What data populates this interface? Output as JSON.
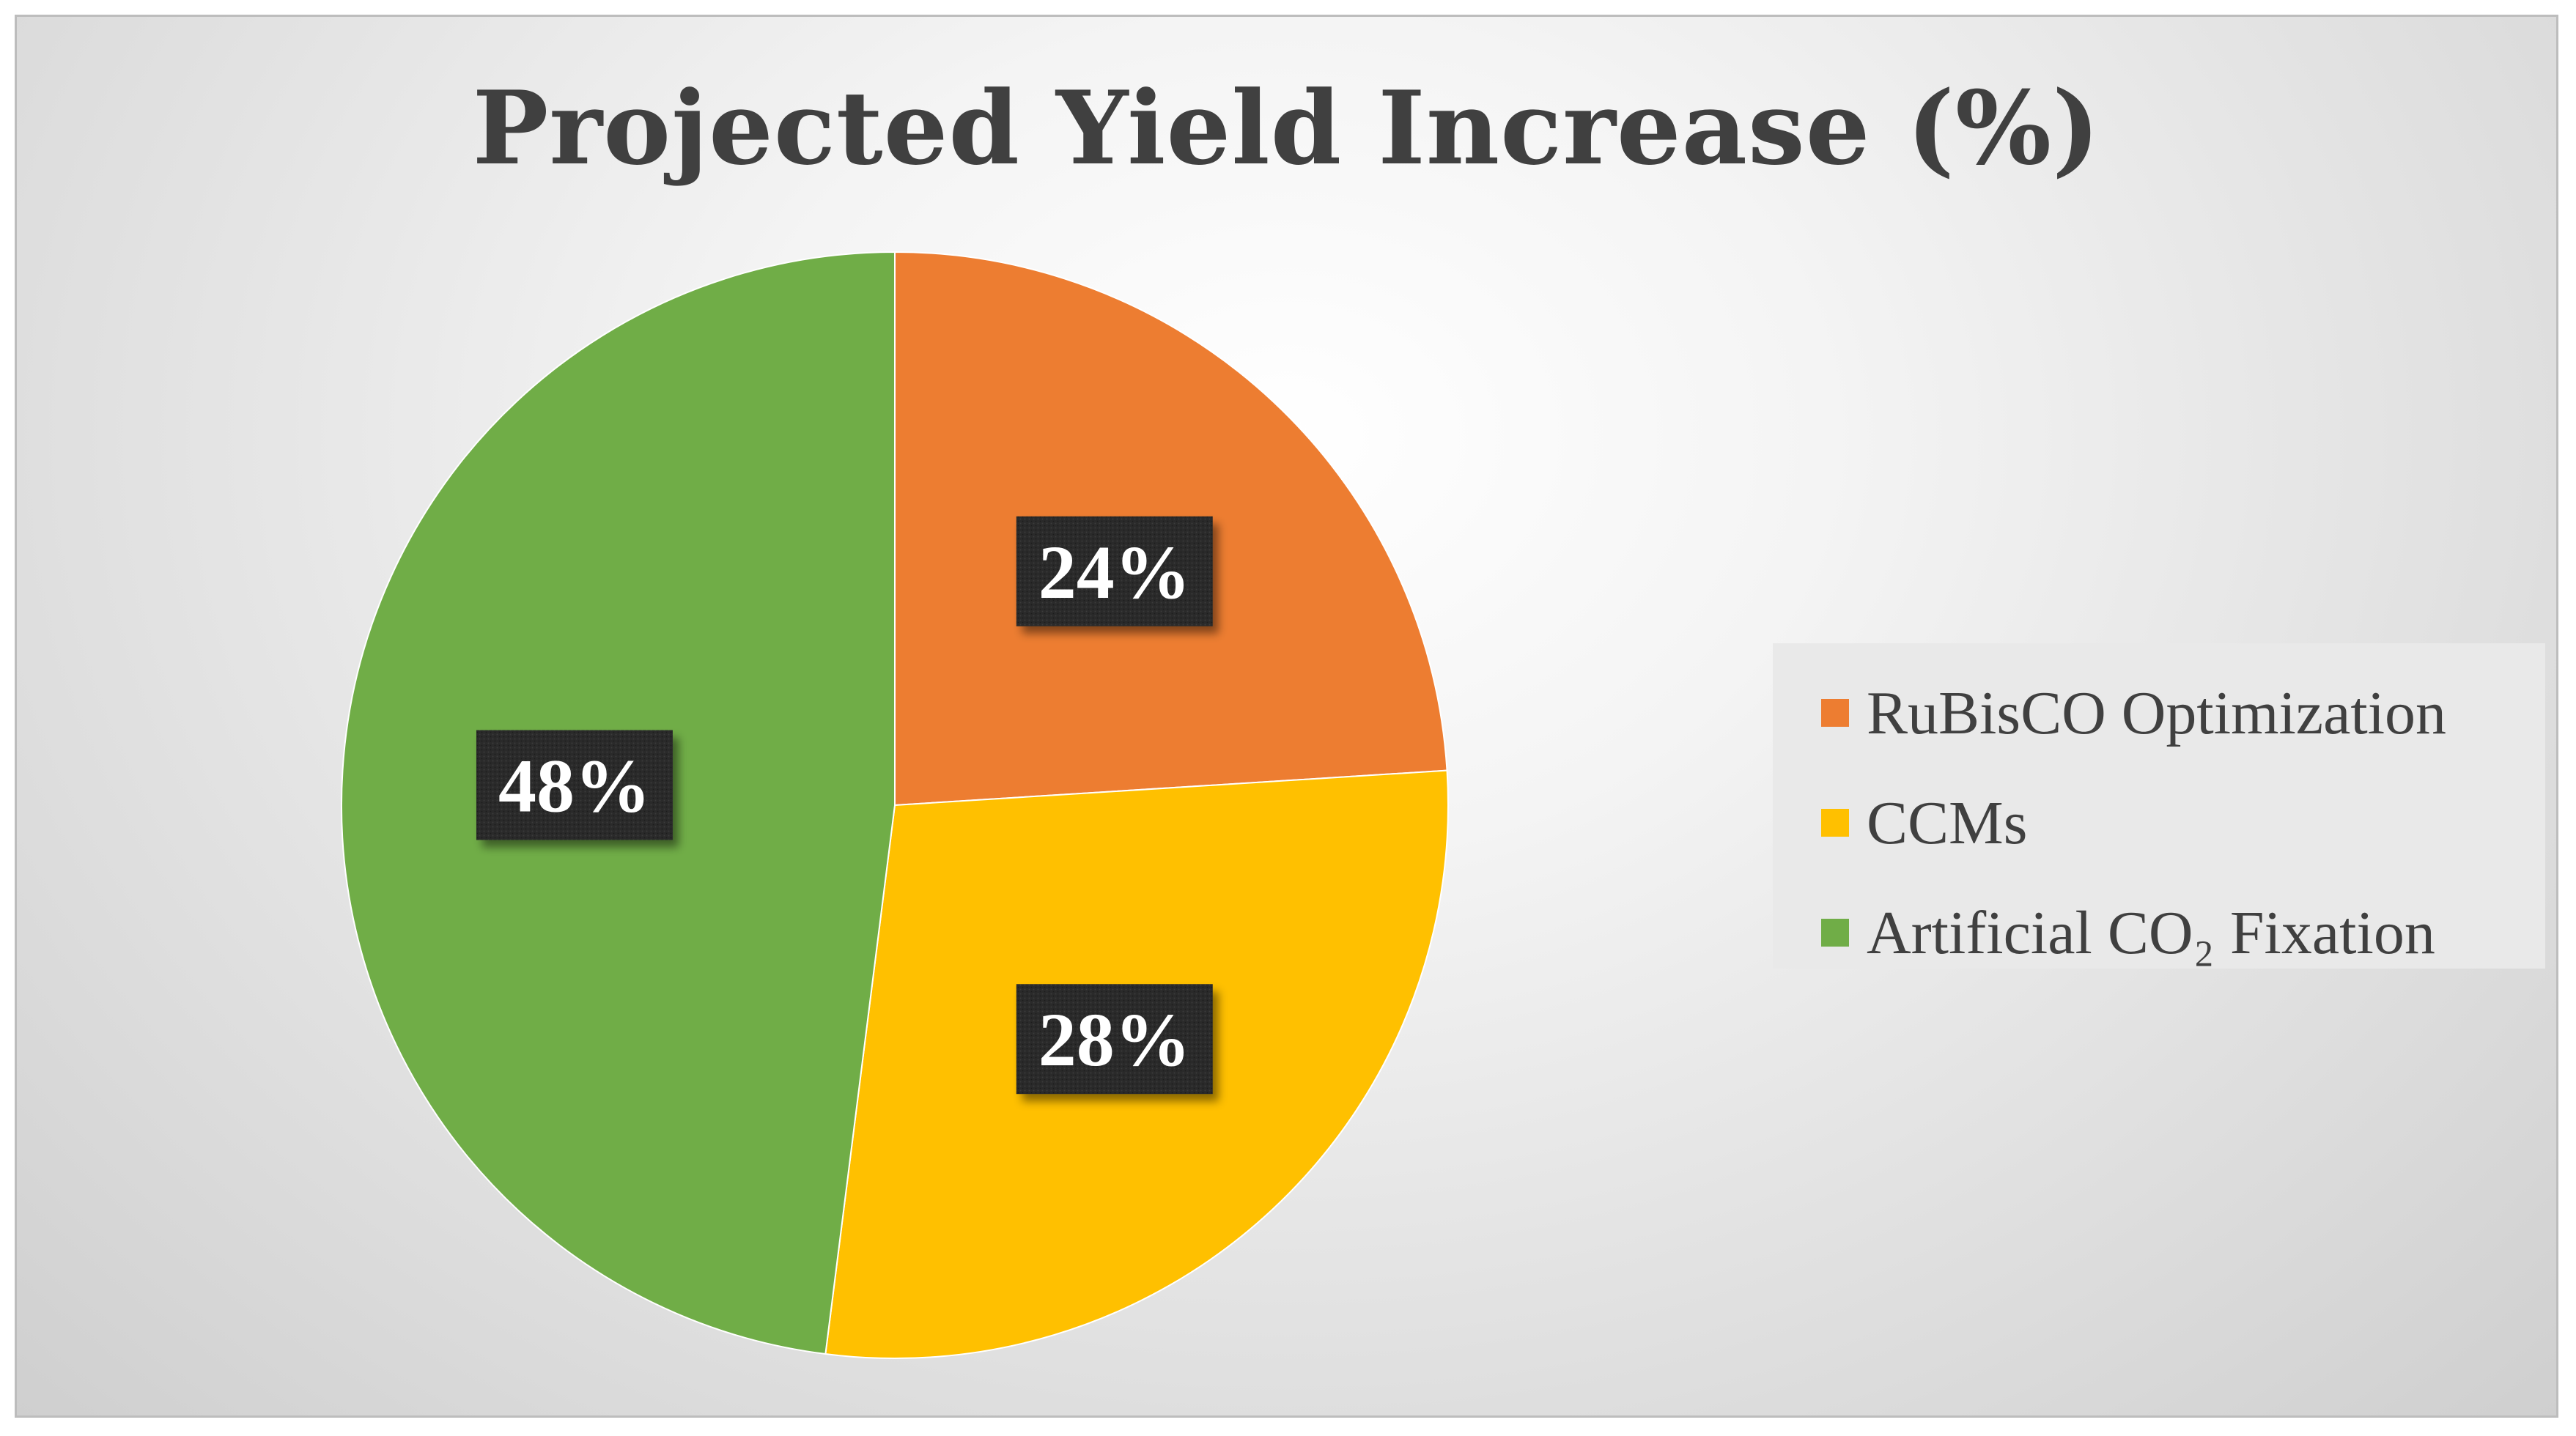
{
  "chart_data": {
    "type": "pie",
    "title": "Projected Yield Increase (%)",
    "categories": [
      "RuBisCO Optimization",
      "CCMs",
      "Artificial CO₂ Fixation"
    ],
    "values": [
      24,
      28,
      48
    ],
    "data_labels": [
      "24%",
      "28%",
      "48%"
    ],
    "colors": [
      "#ED7D31",
      "#FFC000",
      "#70AD47"
    ],
    "start_angle_deg": 0,
    "direction": "clockwise",
    "legend_position": "right",
    "data_label_style": {
      "background": "#262626",
      "text_color": "#FFFFFF"
    }
  }
}
